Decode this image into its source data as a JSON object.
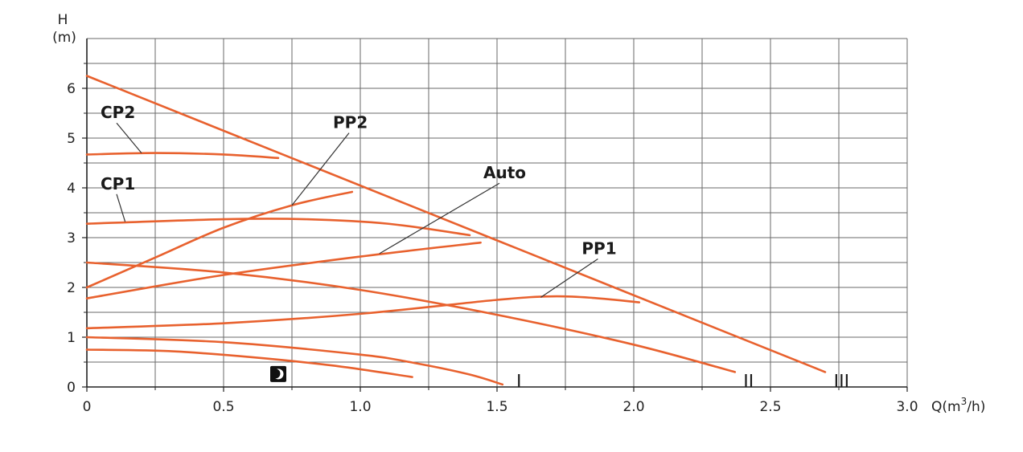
{
  "chart_data": {
    "type": "line",
    "title": "",
    "xlabel": "Q(m³/h)",
    "ylabel": "H\n(m)",
    "ylabel_lines": [
      "H",
      "(m)"
    ],
    "xlim": [
      0,
      3.0
    ],
    "ylim": [
      0,
      7
    ],
    "x_ticks": [
      {
        "value": 0,
        "label": "0"
      },
      {
        "value": 0.5,
        "label": "0.5"
      },
      {
        "value": 1.0,
        "label": "1.0"
      },
      {
        "value": 1.5,
        "label": "1.5"
      },
      {
        "value": 2.0,
        "label": "2.0"
      },
      {
        "value": 2.5,
        "label": "2.5"
      },
      {
        "value": 3.0,
        "label": "3.0"
      }
    ],
    "y_ticks": [
      {
        "value": 0,
        "label": "0"
      },
      {
        "value": 1,
        "label": "1"
      },
      {
        "value": 2,
        "label": "2"
      },
      {
        "value": 3,
        "label": "3"
      },
      {
        "value": 4,
        "label": "4"
      },
      {
        "value": 5,
        "label": "5"
      },
      {
        "value": 6,
        "label": "6"
      }
    ],
    "grid": true,
    "x_minor_step": 0.25,
    "y_minor_step": 0.5,
    "line_color": "#e8612e",
    "series": [
      {
        "key": "speed3-max",
        "points": [
          [
            0,
            6.25
          ],
          [
            0.5,
            5.1
          ],
          [
            1.0,
            3.9
          ],
          [
            1.5,
            2.75
          ],
          [
            2.0,
            1.7
          ],
          [
            2.5,
            0.75
          ],
          [
            2.7,
            0.3
          ]
        ]
      },
      {
        "key": "speed2",
        "points": [
          [
            0,
            2.5
          ],
          [
            0.5,
            2.3
          ],
          [
            1.0,
            1.95
          ],
          [
            1.5,
            1.45
          ],
          [
            2.0,
            0.85
          ],
          [
            2.37,
            0.3
          ]
        ]
      },
      {
        "key": "speed1",
        "points": [
          [
            0,
            1.0
          ],
          [
            0.5,
            0.9
          ],
          [
            1.0,
            0.65
          ],
          [
            1.2,
            0.48
          ],
          [
            1.4,
            0.25
          ],
          [
            1.52,
            0.05
          ]
        ]
      },
      {
        "key": "night",
        "points": [
          [
            0,
            0.75
          ],
          [
            0.3,
            0.72
          ],
          [
            0.6,
            0.6
          ],
          [
            0.9,
            0.43
          ],
          [
            1.19,
            0.2
          ]
        ]
      },
      {
        "key": "CP2",
        "points": [
          [
            0,
            4.67
          ],
          [
            0.25,
            4.7
          ],
          [
            0.5,
            4.67
          ],
          [
            0.7,
            4.6
          ]
        ]
      },
      {
        "key": "CP1",
        "points": [
          [
            0,
            3.28
          ],
          [
            0.5,
            3.37
          ],
          [
            0.8,
            3.37
          ],
          [
            1.1,
            3.28
          ],
          [
            1.4,
            3.05
          ]
        ]
      },
      {
        "key": "PP2",
        "points": [
          [
            0,
            2.0
          ],
          [
            0.25,
            2.6
          ],
          [
            0.5,
            3.2
          ],
          [
            0.75,
            3.65
          ],
          [
            0.97,
            3.92
          ]
        ]
      },
      {
        "key": "Auto",
        "points": [
          [
            0,
            1.78
          ],
          [
            0.5,
            2.25
          ],
          [
            1.0,
            2.62
          ],
          [
            1.44,
            2.9
          ]
        ]
      },
      {
        "key": "PP1",
        "points": [
          [
            0,
            1.18
          ],
          [
            0.5,
            1.28
          ],
          [
            1.0,
            1.47
          ],
          [
            1.5,
            1.75
          ],
          [
            1.7,
            1.82
          ],
          [
            1.85,
            1.79
          ],
          [
            2.02,
            1.7
          ]
        ]
      }
    ],
    "curve_labels": [
      {
        "text": "CP2",
        "at": [
          0.05,
          5.4
        ],
        "leader_to": [
          0.2,
          4.7
        ]
      },
      {
        "text": "PP2",
        "at": [
          0.9,
          5.2
        ],
        "leader_to": [
          0.75,
          3.65
        ]
      },
      {
        "text": "CP1",
        "at": [
          0.05,
          3.97
        ],
        "leader_to": [
          0.14,
          3.32
        ]
      },
      {
        "text": "Auto",
        "at": [
          1.45,
          4.19
        ],
        "leader_to": [
          1.07,
          2.68
        ]
      },
      {
        "text": "PP1",
        "at": [
          1.81,
          2.67
        ],
        "leader_to": [
          1.66,
          1.8
        ]
      }
    ],
    "speed_markers": [
      {
        "text": "I",
        "at": [
          1.58,
          0.12
        ]
      },
      {
        "text": "II",
        "at": [
          2.42,
          0.12
        ]
      },
      {
        "text": "III",
        "at": [
          2.76,
          0.12
        ]
      }
    ],
    "night_icon": {
      "icon": "night-mode-moon-icon",
      "at": [
        0.7,
        0.26
      ]
    }
  }
}
